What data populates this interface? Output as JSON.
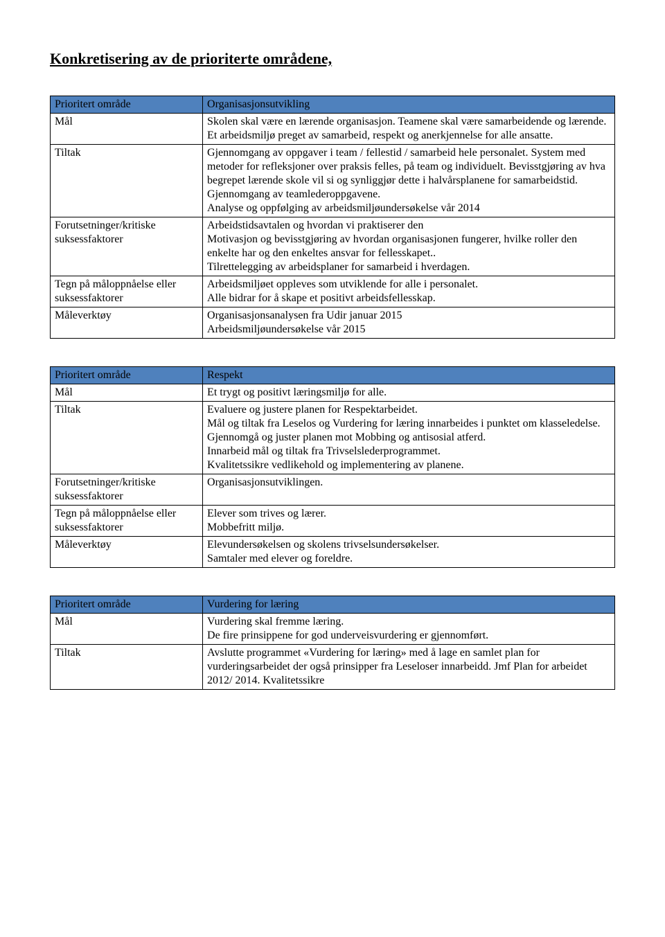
{
  "title": "Konkretisering av de prioriterte områdene,",
  "colors": {
    "header_bg": "#4f81bd",
    "border": "#000000",
    "text": "#000000",
    "background": "#ffffff"
  },
  "labels": {
    "prioritert": "Prioritert område",
    "mal": "Mål",
    "tiltak": "Tiltak",
    "forutsetninger": "Forutsetninger/kritiske suksessfaktorer",
    "tegn": "Tegn på måloppnåelse eller suksessfaktorer",
    "maleverktoy": "Måleverktøy"
  },
  "table1": {
    "prioritert": "Organisasjonsutvikling",
    "mal": " Skolen skal være en lærende organisasjon. Teamene skal være samarbeidende og lærende.\nEt arbeidsmiljø preget av samarbeid, respekt og anerkjennelse for alle ansatte.",
    "tiltak": "Gjennomgang av oppgaver i team / fellestid / samarbeid hele personalet. System med metoder for refleksjoner over praksis felles, på team og individuelt. Bevisstgjøring av hva begrepet lærende skole vil si og synliggjør dette i halvårsplanene for samarbeidstid. Gjennomgang av teamlederoppgavene.\nAnalyse og oppfølging av arbeidsmiljøundersøkelse vår 2014",
    "forutsetninger": "Arbeidstidsavtalen og hvordan vi praktiserer den\nMotivasjon og bevisstgjøring av hvordan organisasjonen fungerer, hvilke roller den enkelte har og den enkeltes ansvar for fellesskapet..\nTilrettelegging av arbeidsplaner for samarbeid i hverdagen.",
    "tegn": "Arbeidsmiljøet oppleves som utviklende for alle i personalet.\nAlle bidrar for å skape et positivt arbeidsfellesskap.",
    "maleverktoy": "Organisasjonsanalysen fra Udir januar 2015\nArbeidsmiljøundersøkelse vår 2015"
  },
  "table2": {
    "prioritert": "Respekt",
    "mal": "Et trygt og positivt læringsmiljø for alle.",
    "tiltak": "Evaluere og justere planen for Respektarbeidet.\nMål og tiltak fra Leselos og Vurdering for læring innarbeides i punktet om klasseledelse.\nGjennomgå og juster planen mot Mobbing og antisosial atferd.\nInnarbeid mål og tiltak fra Trivselslederprogrammet.\nKvalitetssikre vedlikehold og implementering av planene.",
    "forutsetninger": "Organisasjonsutviklingen.",
    "tegn": "Elever som trives og lærer.\nMobbefritt miljø.",
    "maleverktoy": "Elevundersøkelsen og skolens trivselsundersøkelser.\nSamtaler med elever og foreldre."
  },
  "table3": {
    "prioritert": "Vurdering for læring",
    "mal": "Vurdering skal fremme læring.\nDe fire prinsippene for god underveisvurdering er gjennomført.",
    "tiltak": "Avslutte programmet «Vurdering for læring» med å lage en samlet plan for vurderingsarbeidet der også prinsipper fra Leseloser innarbeidd. Jmf Plan for arbeidet 2012/ 2014. Kvalitetssikre"
  }
}
